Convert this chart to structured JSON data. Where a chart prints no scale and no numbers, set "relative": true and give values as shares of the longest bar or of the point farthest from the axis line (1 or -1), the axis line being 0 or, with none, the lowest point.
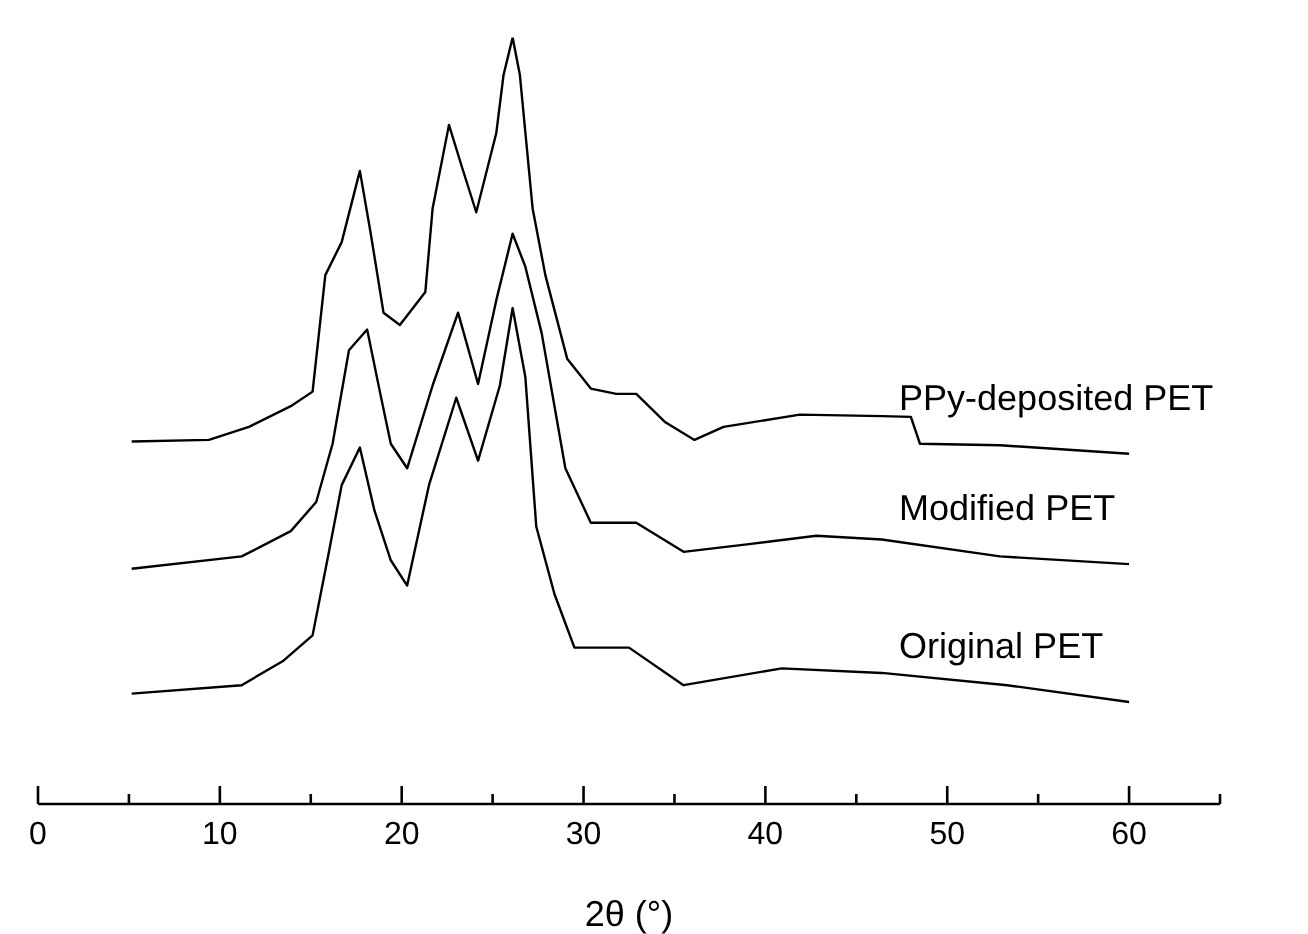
{
  "chart_data": {
    "type": "line",
    "relative": true,
    "xlabel": "2θ (°)",
    "xlim": [
      0,
      65
    ],
    "xticks": [
      0,
      {
        "value": 5,
        "label": null
      },
      10,
      {
        "value": 15,
        "label": null
      },
      20,
      {
        "value": 25,
        "label": null
      },
      30,
      {
        "value": 35,
        "label": null
      },
      40,
      {
        "value": 45,
        "label": null
      },
      50,
      {
        "value": 55,
        "label": null
      },
      60,
      {
        "value": 65,
        "label": null
      }
    ],
    "marker": "none",
    "line_style": "solid",
    "series": [
      {
        "name": "PPy-deposited PET",
        "color": "#000000",
        "x": [
          5.15,
          9.4,
          11.6,
          13.9,
          15.1,
          15.8,
          16.7,
          17.7,
          18.3,
          19.0,
          19.9,
          21.3,
          21.7,
          22.6,
          23.3,
          24.1,
          25.2,
          25.6,
          26.1,
          26.5,
          27.2,
          27.9,
          29.1,
          30.4,
          31.8,
          32.9,
          34.5,
          36.1,
          37.7,
          41.9,
          46.4,
          48.0,
          48.5,
          52.9,
          60.0
        ],
        "values": [
          0.473,
          0.475,
          0.492,
          0.519,
          0.538,
          0.69,
          0.733,
          0.826,
          0.744,
          0.641,
          0.625,
          0.668,
          0.777,
          0.886,
          0.832,
          0.772,
          0.875,
          0.951,
          1.0,
          0.951,
          0.777,
          0.69,
          0.581,
          0.542,
          0.535,
          0.535,
          0.498,
          0.475,
          0.492,
          0.508,
          0.506,
          0.505,
          0.47,
          0.468,
          0.457
        ]
      },
      {
        "name": "Modified PET",
        "color": "#000000",
        "x": [
          5.15,
          11.2,
          13.9,
          15.3,
          16.2,
          17.1,
          18.1,
          18.8,
          19.4,
          20.3,
          21.7,
          23.1,
          24.2,
          25.2,
          26.1,
          26.8,
          27.7,
          29.0,
          30.4,
          32.9,
          35.5,
          39.1,
          42.8,
          46.4,
          52.9,
          60.0
        ],
        "values": [
          0.307,
          0.323,
          0.356,
          0.394,
          0.47,
          0.592,
          0.619,
          0.538,
          0.47,
          0.438,
          0.546,
          0.641,
          0.548,
          0.657,
          0.744,
          0.701,
          0.614,
          0.438,
          0.367,
          0.367,
          0.329,
          0.339,
          0.35,
          0.345,
          0.323,
          0.313
        ]
      },
      {
        "name": "Original PET",
        "color": "#000000",
        "x": [
          5.15,
          11.2,
          13.5,
          15.1,
          16.0,
          16.7,
          17.7,
          18.5,
          19.4,
          20.3,
          21.5,
          23.0,
          24.2,
          25.4,
          26.1,
          26.8,
          27.4,
          28.4,
          29.5,
          32.5,
          35.5,
          40.9,
          46.4,
          53.3,
          60.0
        ],
        "values": [
          0.144,
          0.155,
          0.187,
          0.22,
          0.329,
          0.416,
          0.465,
          0.383,
          0.318,
          0.285,
          0.416,
          0.53,
          0.448,
          0.546,
          0.647,
          0.557,
          0.362,
          0.274,
          0.204,
          0.204,
          0.155,
          0.177,
          0.171,
          0.155,
          0.133
        ]
      }
    ]
  }
}
